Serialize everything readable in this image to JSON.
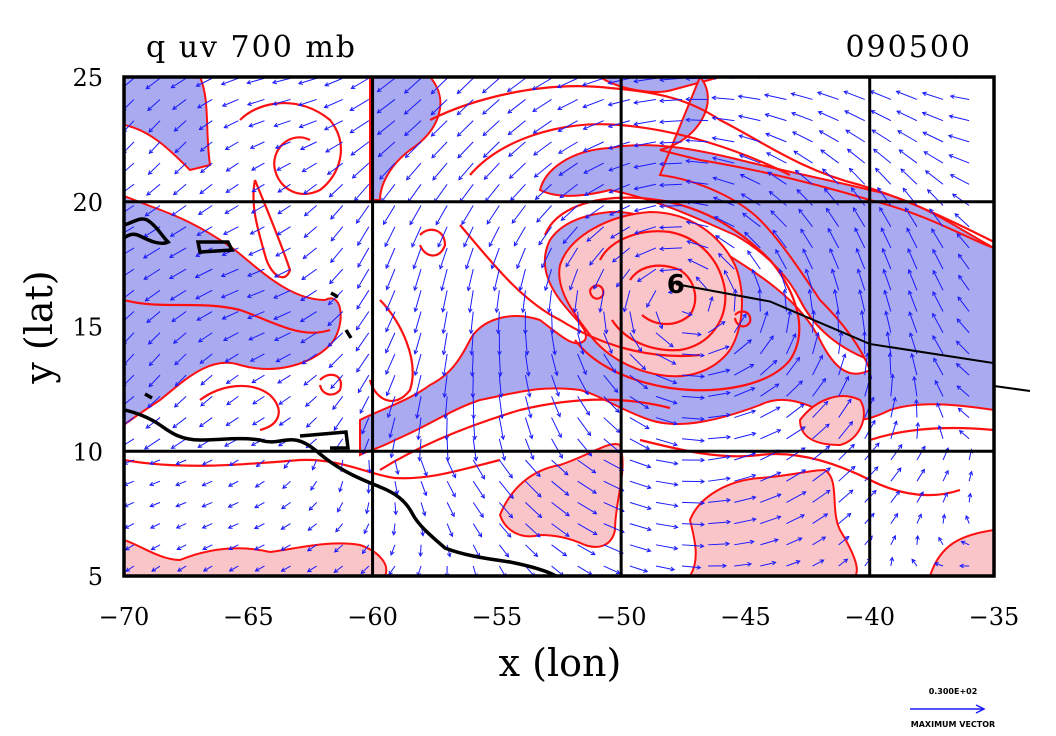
{
  "chart_data": {
    "type": "contour-vector-map",
    "title_left": "q  uv  700  mb",
    "title_right": "090500",
    "xlabel": "x (lon)",
    "ylabel": "y (lat)",
    "xlim": [
      -70,
      -35
    ],
    "ylim": [
      5,
      25
    ],
    "x_ticks": [
      -70,
      -65,
      -60,
      -55,
      -50,
      -45,
      -40,
      -35
    ],
    "x_tick_labels": [
      "−70",
      "−65",
      "−60",
      "−55",
      "−50",
      "−45",
      "−40",
      "−35"
    ],
    "y_ticks": [
      5,
      10,
      15,
      20,
      25
    ],
    "y_tick_labels": [
      "5",
      "10",
      "15",
      "20",
      "25"
    ],
    "grid_lon": [
      -60,
      -50,
      -40
    ],
    "grid_lat": [
      10,
      20
    ],
    "vector_legend_value": "0.300E+02",
    "vector_legend_label": "MAXIMUM VECTOR",
    "storm_center": {
      "lon": -47.8,
      "lat": 16.7
    },
    "track": [
      {
        "lon": -47.8,
        "lat": 16.7
      },
      {
        "lon": -44.0,
        "lat": 16.0
      },
      {
        "lon": -40.0,
        "lat": 14.3
      },
      {
        "lon": -33.5,
        "lat": 13.3
      }
    ],
    "colors": {
      "high_q_fill": "#f9c5c8",
      "low_q_fill": "#aaaaf0",
      "contour": "#ff1010",
      "vector": "#1a1aff",
      "coast": "#000000"
    }
  }
}
